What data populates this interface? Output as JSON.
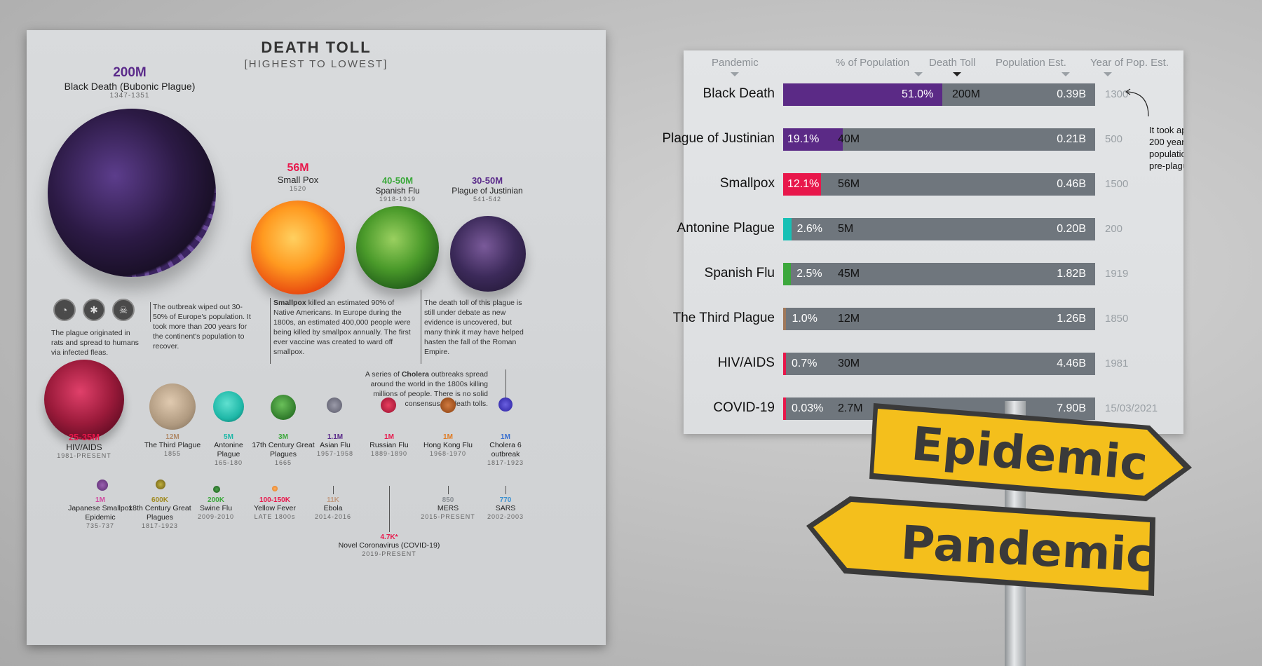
{
  "infographic": {
    "title": "DEATH TOLL",
    "subtitle": "[HIGHEST TO LOWEST]",
    "top_row": [
      {
        "toll": "200M",
        "name": "Black Death (Bubonic Plague)",
        "years": "1347-1351",
        "toll_color": "#5a2a8a"
      },
      {
        "toll": "56M",
        "name": "Small Pox",
        "years": "1520",
        "toll_color": "#e8174b"
      },
      {
        "toll": "40-50M",
        "name": "Spanish Flu",
        "years": "1918-1919",
        "toll_color": "#3aa83a"
      },
      {
        "toll": "30-50M",
        "name": "Plague of Justinian",
        "years": "541-542",
        "toll_color": "#5a2a8a"
      }
    ],
    "notes": {
      "plague_origin": "The plague originated in rats and spread to humans via infected fleas.",
      "black_death": "The outbreak wiped out 30-50% of Europe's population. It took more than 200 years for the continent's population to recover.",
      "smallpox_bold": "Smallpox",
      "smallpox": " killed an estimated 90% of Native Americans. In Europe during the 1800s, an estimated 400,000 people were being killed by smallpox annually. The first ever vaccine was created to ward off smallpox.",
      "justinian": "The death toll of this plague is still under debate as new evidence is uncovered, but many think it may have helped hasten the fall of the Roman Empire.",
      "cholera_pre": "A series of ",
      "cholera_bold": "Cholera",
      "cholera_post": " outbreaks spread around the world in the 1800s killing millions of people. There is no solid consensus on death tolls."
    },
    "mid_row": [
      {
        "toll": "25-35M",
        "name": "HIV/AIDS",
        "years": "1981-PRESENT",
        "toll_color": "#e8174b"
      },
      {
        "toll": "12M",
        "name": "The Third Plague",
        "years": "1855",
        "toll_color": "#b08a6a"
      },
      {
        "toll": "5M",
        "name": "Antonine Plague",
        "years": "165-180",
        "toll_color": "#1fb8a8"
      },
      {
        "toll": "3M",
        "name": "17th Century Great Plagues",
        "years": "1665",
        "toll_color": "#3aa83a"
      },
      {
        "toll": "1.1M",
        "name": "Asian Flu",
        "years": "1957-1958",
        "toll_color": "#5a2a8a"
      },
      {
        "toll": "1M",
        "name": "Russian Flu",
        "years": "1889-1890",
        "toll_color": "#e8174b"
      },
      {
        "toll": "1M",
        "name": "Hong Kong Flu",
        "years": "1968-1970",
        "toll_color": "#e07a20"
      },
      {
        "toll": "1M",
        "name": "Cholera 6 outbreak",
        "years": "1817-1923",
        "toll_color": "#3a70d0"
      }
    ],
    "bottom_row": [
      {
        "toll": "1M",
        "name": "Japanese Smallpox Epidemic",
        "years": "735-737",
        "toll_color": "#d04aa0"
      },
      {
        "toll": "600K",
        "name": "18th Century Great Plagues",
        "years": "1817-1923",
        "toll_color": "#a08a20"
      },
      {
        "toll": "200K",
        "name": "Swine Flu",
        "years": "2009-2010",
        "toll_color": "#3aa83a"
      },
      {
        "toll": "100-150K",
        "name": "Yellow Fever",
        "years": "LATE 1800s",
        "toll_color": "#e8174b"
      },
      {
        "toll": "11K",
        "name": "Ebola",
        "years": "2014-2016",
        "toll_color": "#c09a80"
      },
      {
        "toll": "850",
        "name": "MERS",
        "years": "2015-PRESENT",
        "toll_color": "#8a8f94"
      },
      {
        "toll": "770",
        "name": "SARS",
        "years": "2002-2003",
        "toll_color": "#3a90d0"
      }
    ],
    "covid": {
      "toll": "4.7K*",
      "name": "Novel Coronavirus (COVID-19)",
      "years": "2019-PRESENT",
      "toll_color": "#e8174b"
    }
  },
  "table": {
    "headers": {
      "pandemic": "Pandemic",
      "pct": "% of Population",
      "toll": "Death Toll",
      "pop": "Population Est.",
      "year": "Year of Pop. Est."
    },
    "rows": [
      {
        "name": "Black Death",
        "pct": "51.0%",
        "pct_value": 51.0,
        "toll": "200M",
        "pop": "0.39B",
        "year": "1300",
        "color": "#5b2a86"
      },
      {
        "name": "Plague of Justinian",
        "pct": "19.1%",
        "pct_value": 19.1,
        "toll": "40M",
        "pop": "0.21B",
        "year": "500",
        "color": "#5b2a86"
      },
      {
        "name": "Smallpox",
        "pct": "12.1%",
        "pct_value": 12.1,
        "toll": "56M",
        "pop": "0.46B",
        "year": "1500",
        "color": "#e8174b"
      },
      {
        "name": "Antonine Plague",
        "pct": "2.6%",
        "pct_value": 2.6,
        "toll": "5M",
        "pop": "0.20B",
        "year": "200",
        "color": "#17c0b5"
      },
      {
        "name": "Spanish Flu",
        "pct": "2.5%",
        "pct_value": 2.5,
        "toll": "45M",
        "pop": "1.82B",
        "year": "1919",
        "color": "#3ca83c"
      },
      {
        "name": "The Third Plague",
        "pct": "1.0%",
        "pct_value": 1.0,
        "toll": "12M",
        "pop": "1.26B",
        "year": "1850",
        "color": "#a0785a"
      },
      {
        "name": "HIV/AIDS",
        "pct": "0.7%",
        "pct_value": 0.7,
        "toll": "30M",
        "pop": "4.46B",
        "year": "1981",
        "color": "#e8174b"
      },
      {
        "name": "COVID-19",
        "pct": "0.03%",
        "pct_value": 0.03,
        "toll": "2.7M",
        "pop": "7.90B",
        "year": "15/03/2021",
        "color": "#e8174b"
      }
    ],
    "side_note": [
      "It took ap",
      "200 year",
      "populatic",
      "pre-plagu"
    ]
  },
  "signs": {
    "top": "Epidemic",
    "bottom": "Pandemic",
    "color": "#f4bf1c"
  }
}
